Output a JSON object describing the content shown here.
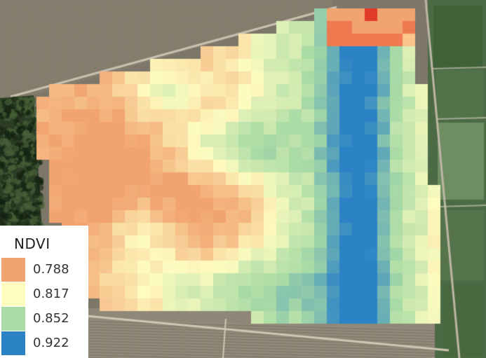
{
  "map": {
    "type": "ndvi-field-raster",
    "basemap": "satellite imagery (farm fields, hedgerows, tree stand)",
    "color_ramp": [
      "#f2a470",
      "#fefcbf",
      "#a9dba5",
      "#2b83c6"
    ]
  },
  "legend": {
    "title": "NDVI",
    "items": [
      {
        "value": "0.788",
        "color": "#f2a470"
      },
      {
        "value": "0.817",
        "color": "#fefcbf"
      },
      {
        "value": "0.852",
        "color": "#a9dba5"
      },
      {
        "value": "0.922",
        "color": "#2b83c6"
      }
    ]
  }
}
